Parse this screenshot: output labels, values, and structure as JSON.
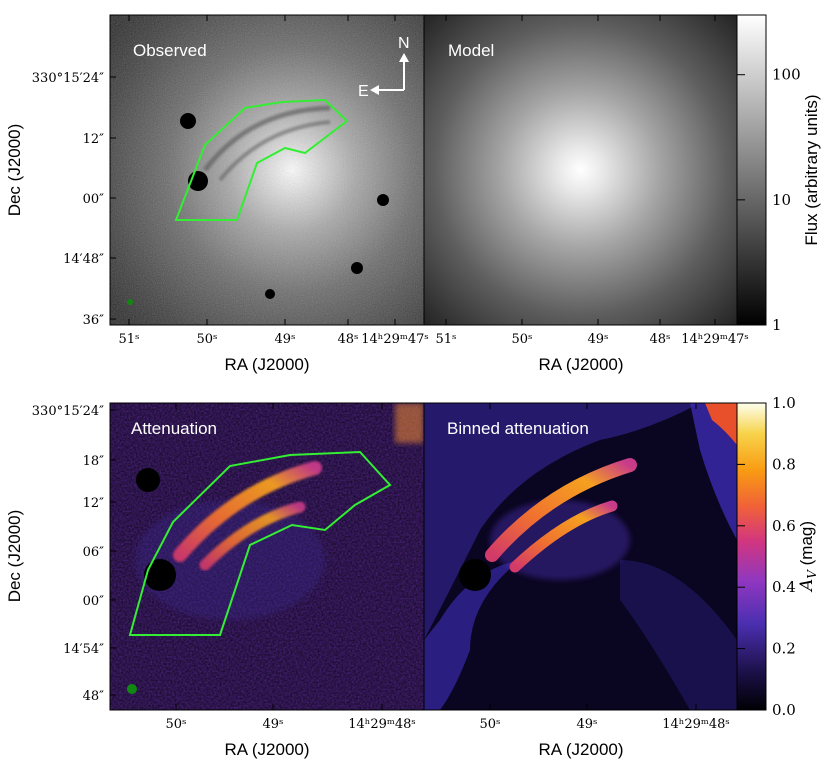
{
  "figure": {
    "panels": {
      "observed": "Observed",
      "model": "Model",
      "attenuation": "Attenuation",
      "binned": "Binned attenuation"
    },
    "compass": {
      "north": "N",
      "east": "E"
    },
    "colors": {
      "region_outline": "#33ee33",
      "psf_marker": "#118811"
    }
  },
  "chart_data": [
    {
      "type": "heatmap",
      "panel": "Observed",
      "xlabel": "RA (J2000)",
      "ylabel": "Dec (J2000)",
      "xticks": [
        "51ˢ",
        "50ˢ",
        "49ˢ",
        "48ˢ",
        "14ʰ29ᵐ47ˢ"
      ],
      "yticks": [
        "330°15′24″",
        "12″",
        "00″",
        "14′48″",
        "36″"
      ],
      "colormap": "grayscale"
    },
    {
      "type": "heatmap",
      "panel": "Model",
      "xlabel": "RA (J2000)",
      "xticks": [
        "51ˢ",
        "50ˢ",
        "49ˢ",
        "48ˢ",
        "14ʰ29ᵐ47ˢ"
      ],
      "colorbar": {
        "label": "Flux (arbitrary units)",
        "scale": "log",
        "range": [
          1,
          300
        ],
        "ticks": [
          "1",
          "10",
          "100"
        ]
      }
    },
    {
      "type": "heatmap",
      "panel": "Attenuation",
      "xlabel": "RA (J2000)",
      "ylabel": "Dec (J2000)",
      "xticks": [
        "50ˢ",
        "49ˢ",
        "14ʰ29ᵐ48ˢ"
      ],
      "yticks": [
        "330°15′24″",
        "18″",
        "12″",
        "06″",
        "00″",
        "14′54″",
        "48″"
      ],
      "colormap": "inferno-like"
    },
    {
      "type": "heatmap",
      "panel": "Binned attenuation",
      "xlabel": "RA (J2000)",
      "xticks": [
        "50ˢ",
        "49ˢ",
        "14ʰ29ᵐ48ˢ"
      ],
      "colorbar": {
        "label": "A_V (mag)",
        "label_main": "A",
        "label_sub": "V",
        "label_unit": " (mag)",
        "scale": "linear",
        "range": [
          0,
          1
        ],
        "ticks": [
          "0.0",
          "0.2",
          "0.4",
          "0.6",
          "0.8",
          "1.0"
        ]
      }
    }
  ]
}
